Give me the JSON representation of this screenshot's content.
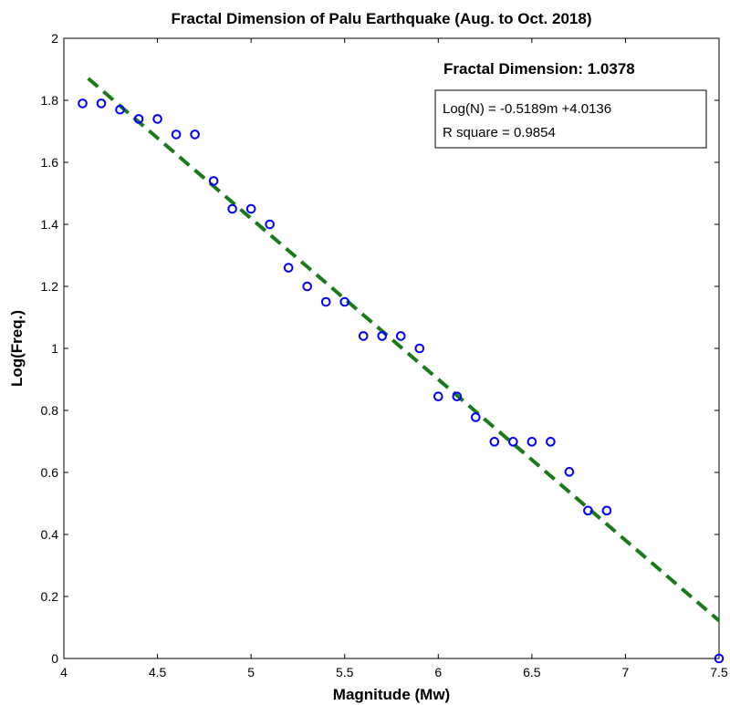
{
  "chart_data": {
    "type": "scatter",
    "title": "Fractal Dimension of Palu Earthquake (Aug. to Oct. 2018)",
    "xlabel": "Magnitude (Mw)",
    "ylabel": "Log(Freq.)",
    "xlim": [
      4,
      7.5
    ],
    "ylim": [
      0,
      2
    ],
    "xticks": [
      4,
      4.5,
      5,
      5.5,
      6,
      6.5,
      7,
      7.5
    ],
    "xtick_labels": [
      "4",
      "4.5",
      "5",
      "5.5",
      "6",
      "6.5",
      "7",
      "7.5"
    ],
    "yticks": [
      0,
      0.2,
      0.4,
      0.6,
      0.8,
      1,
      1.2,
      1.4,
      1.6,
      1.8,
      2
    ],
    "ytick_labels": [
      "0",
      "0.2",
      "0.4",
      "0.6",
      "0.8",
      "1",
      "1.2",
      "1.4",
      "1.6",
      "1.8",
      "2"
    ],
    "grid": false,
    "points": {
      "x": [
        4.1,
        4.2,
        4.3,
        4.4,
        4.5,
        4.6,
        4.7,
        4.8,
        4.9,
        5.0,
        5.1,
        5.2,
        5.3,
        5.4,
        5.5,
        5.6,
        5.7,
        5.8,
        5.9,
        6.0,
        6.1,
        6.2,
        6.3,
        6.4,
        6.5,
        6.6,
        6.7,
        6.8,
        6.9,
        7.5
      ],
      "y": [
        1.79,
        1.79,
        1.77,
        1.74,
        1.74,
        1.69,
        1.69,
        1.54,
        1.45,
        1.45,
        1.4,
        1.26,
        1.2,
        1.15,
        1.15,
        1.04,
        1.04,
        1.04,
        1.0,
        0.845,
        0.845,
        0.778,
        0.699,
        0.699,
        0.699,
        0.699,
        0.602,
        0.477,
        0.477,
        0.0
      ],
      "color": "#0000ff",
      "marker": "circle"
    },
    "fit_line": {
      "slope": -0.5189,
      "intercept": 4.0136,
      "x_range": [
        4.13,
        7.5
      ],
      "color": "#1a7a1a",
      "style": "dashed"
    },
    "annotations": {
      "fractal_dimension": "Fractal Dimension: 1.0378",
      "equation": "Log(N) = -0.5189m +4.0136",
      "r_square": "R square = 0.9854"
    }
  }
}
